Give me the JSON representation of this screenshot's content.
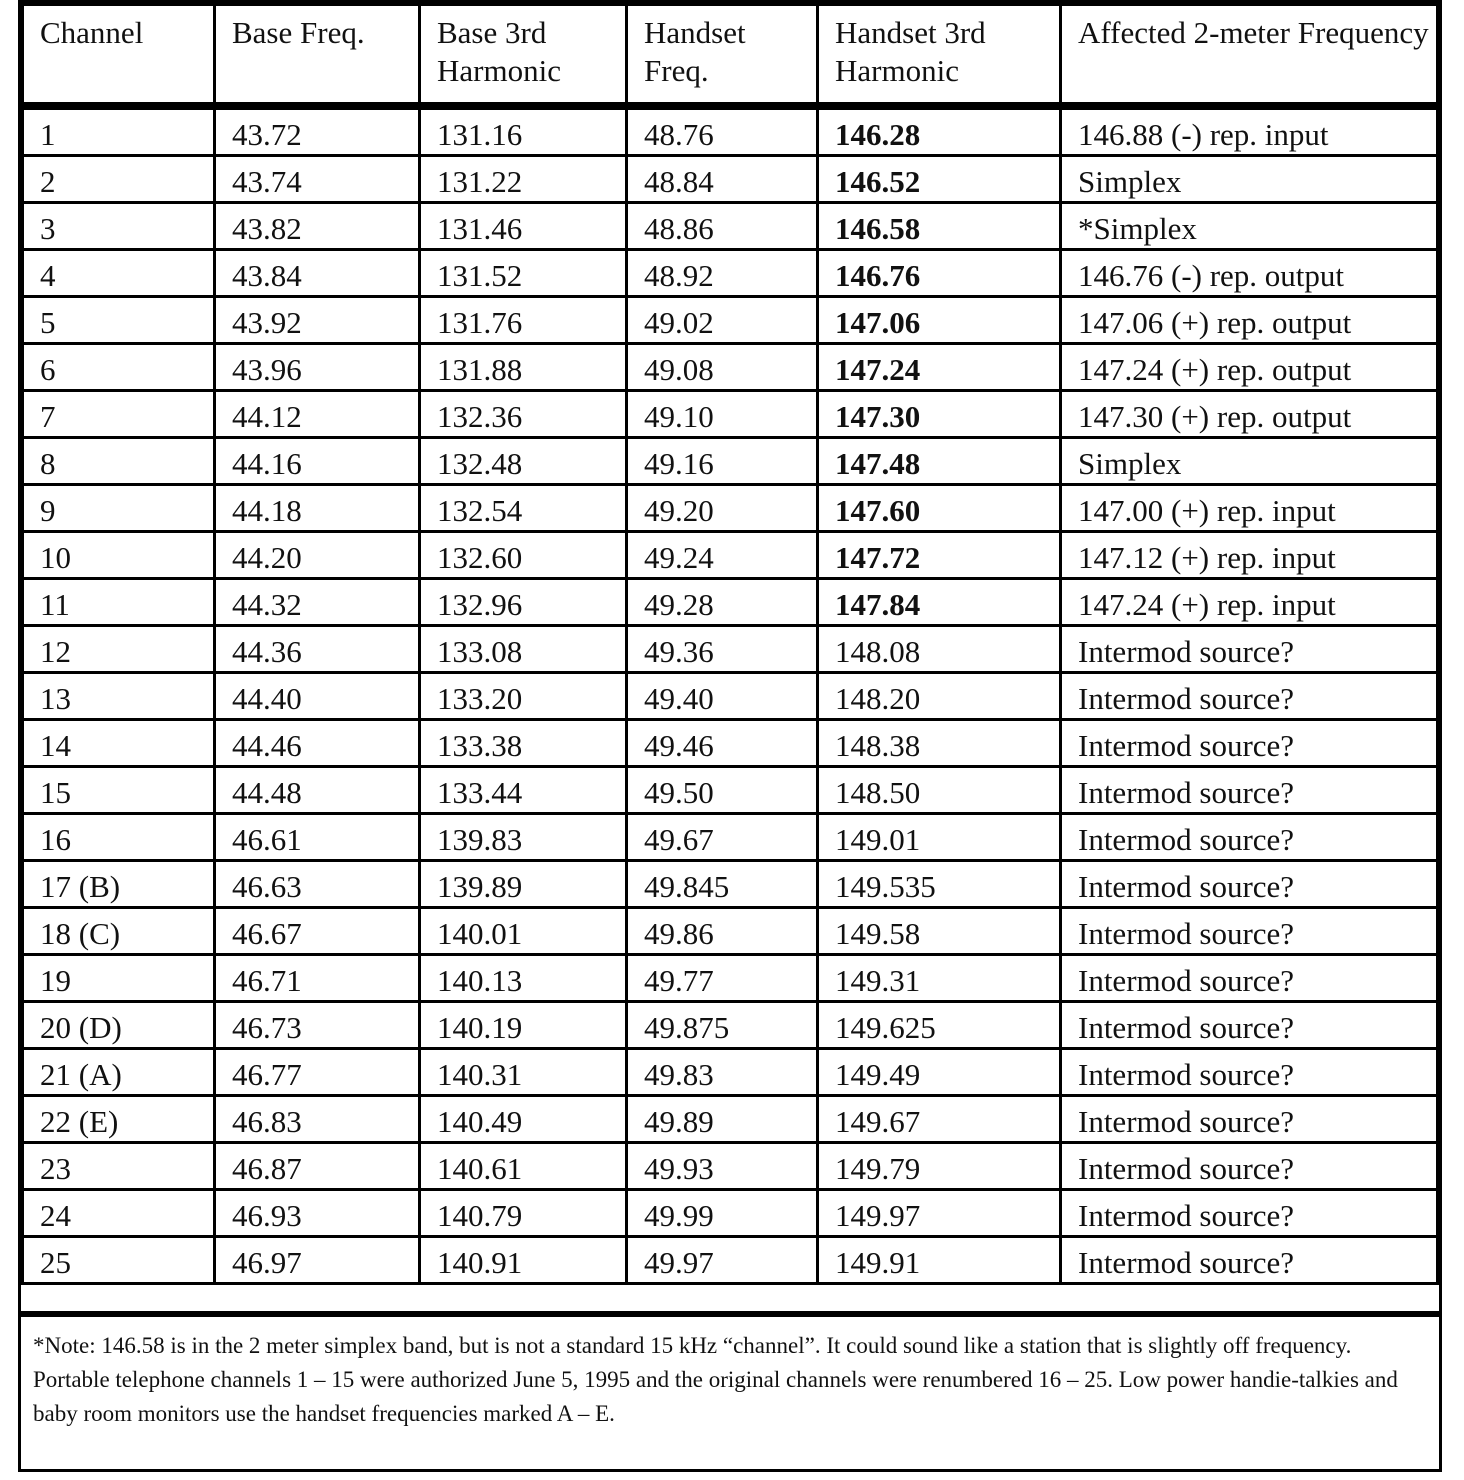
{
  "table": {
    "header": [
      "Channel",
      "Base Freq.",
      "Base 3rd Harmonic",
      "Handset Freq.",
      "Handset 3rd Harmonic",
      "Affected 2-meter Frequency"
    ],
    "rows": [
      [
        "1",
        "43.72",
        "131.16",
        "48.76",
        "146.28",
        "146.88 (-) rep. input"
      ],
      [
        "2",
        "43.74",
        "131.22",
        "48.84",
        "146.52",
        "Simplex"
      ],
      [
        "3",
        "43.82",
        "131.46",
        "48.86",
        "146.58",
        "*Simplex"
      ],
      [
        "4",
        "43.84",
        "131.52",
        "48.92",
        "146.76",
        "146.76 (-) rep. output"
      ],
      [
        "5",
        "43.92",
        "131.76",
        "49.02",
        "147.06",
        "147.06 (+) rep. output"
      ],
      [
        "6",
        "43.96",
        "131.88",
        "49.08",
        "147.24",
        "147.24 (+) rep. output"
      ],
      [
        "7",
        "44.12",
        "132.36",
        "49.10",
        "147.30",
        "147.30 (+) rep. output"
      ],
      [
        "8",
        "44.16",
        "132.48",
        "49.16",
        "147.48",
        "Simplex"
      ],
      [
        "9",
        "44.18",
        "132.54",
        "49.20",
        "147.60",
        "147.00 (+) rep. input"
      ],
      [
        "10",
        "44.20",
        "132.60",
        "49.24",
        "147.72",
        "147.12 (+) rep. input"
      ],
      [
        "11",
        "44.32",
        "132.96",
        "49.28",
        "147.84",
        "147.24 (+) rep. input"
      ],
      [
        "12",
        "44.36",
        "133.08",
        "49.36",
        "148.08",
        "Intermod source?"
      ],
      [
        "13",
        "44.40",
        "133.20",
        "49.40",
        "148.20",
        "Intermod source?"
      ],
      [
        "14",
        "44.46",
        "133.38",
        "49.46",
        "148.38",
        "Intermod source?"
      ],
      [
        "15",
        "44.48",
        "133.44",
        "49.50",
        "148.50",
        "Intermod source?"
      ],
      [
        "16",
        "46.61",
        "139.83",
        "49.67",
        "149.01",
        "Intermod source?"
      ],
      [
        "17  (B)",
        "46.63",
        "139.89",
        "49.845",
        "149.535",
        "Intermod source?"
      ],
      [
        "18  (C)",
        "46.67",
        "140.01",
        "49.86",
        "149.58",
        "Intermod source?"
      ],
      [
        "19",
        "46.71",
        "140.13",
        "49.77",
        "149.31",
        "Intermod source?"
      ],
      [
        "20  (D)",
        "46.73",
        "140.19",
        "49.875",
        "149.625",
        "Intermod source?"
      ],
      [
        "21  (A)",
        "46.77",
        "140.31",
        "49.83",
        "149.49",
        "Intermod source?"
      ],
      [
        "22  (E)",
        "46.83",
        "140.49",
        "49.89",
        "149.67",
        "Intermod source?"
      ],
      [
        "23",
        "46.87",
        "140.61",
        "49.93",
        "149.79",
        "Intermod source?"
      ],
      [
        "24",
        "46.93",
        "140.79",
        "49.99",
        "149.97",
        "Intermod source?"
      ],
      [
        "25",
        "46.97",
        "140.91",
        "49.97",
        "149.91",
        "Intermod source?"
      ]
    ]
  },
  "note": "*Note: 146.58 is in the 2 meter simplex band, but is not a standard 15 kHz “channel”. It could sound like a station that is slightly off frequency. Portable telephone channels 1 – 15 were authorized June 5, 1995 and the original channels were renumbered 16 – 25. Low power handie-talkies and baby room monitors use the handset frequencies marked A – E."
}
